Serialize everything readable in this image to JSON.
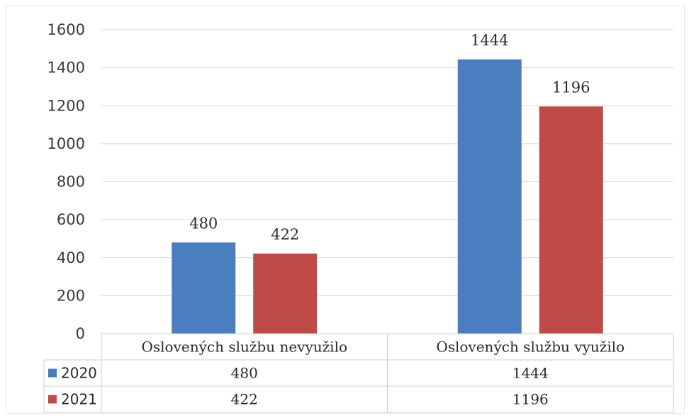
{
  "chart_data": {
    "type": "bar",
    "categories": [
      "Oslovených službu nevyužilo",
      "Oslovených službu využilo"
    ],
    "series": [
      {
        "name": "2020",
        "values": [
          480,
          1444
        ],
        "color": "#4a7ebf"
      },
      {
        "name": "2021",
        "values": [
          422,
          1196
        ],
        "color": "#be4b48"
      }
    ],
    "ylim": [
      0,
      1600
    ],
    "yticks": [
      0,
      200,
      400,
      600,
      800,
      1000,
      1200,
      1400,
      1600
    ],
    "grid": true,
    "data_labels": true,
    "data_table": true
  }
}
